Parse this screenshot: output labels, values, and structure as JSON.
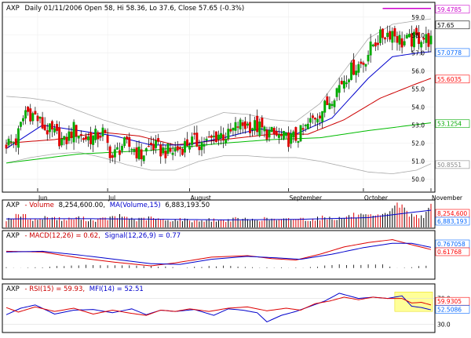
{
  "panels": {
    "price": {
      "symbol": "AXP",
      "info": "Daily 01/11/2006 Open 58, Hi 58.36, Lo 37.6, Close 57.65 (-0.3%)"
    },
    "volume": {
      "symbol": "AXP",
      "info": "- Volume",
      "value": "8,254,600.00,",
      "ma_text": "MA(Volume,15)",
      "ma_value": "6,883,193.50"
    },
    "macd": {
      "symbol": "AXP",
      "info": "- MACD(12,26) = 0.62,",
      "signal_text": "Signal(12,26,9) = 0.77"
    },
    "rsi": {
      "symbol": "AXP",
      "info": "- RSI(15) = 59.93,",
      "mfi_text": "MFI(14) = 52.51"
    }
  },
  "right_labels": {
    "price": [
      {
        "text": "59.4785",
        "color": "#cc00cc"
      },
      {
        "text": "57.65",
        "color": "#000000"
      },
      {
        "text": "57.0778",
        "color": "#0066ff"
      },
      {
        "text": "55.6035",
        "color": "#ff0000"
      },
      {
        "text": "53.1254",
        "color": "#00aa00"
      },
      {
        "text": "50.8551",
        "color": "#888888"
      }
    ],
    "volume": [
      {
        "text": "8,254,600",
        "color": "#ff0000"
      },
      {
        "text": "6,883,193",
        "color": "#0066ff"
      }
    ],
    "macd": [
      {
        "text": "0.767058",
        "color": "#0066ff"
      },
      {
        "text": "0.61768",
        "color": "#ff0000"
      }
    ],
    "rsi": [
      {
        "text": "70.0",
        "color": "#000000"
      },
      {
        "text": "59.9305",
        "color": "#ff0000"
      },
      {
        "text": "52.5086",
        "color": "#0066ff"
      },
      {
        "text": "30.0",
        "color": "#000000"
      }
    ]
  },
  "colors": {
    "up": "#00aa00",
    "down": "#dd0000",
    "ma_fast": "#0000cc",
    "ma_mid": "#cc0000",
    "ma_slow": "#00bb00",
    "bands": "#aaaaaa",
    "resistance": "#cc00cc",
    "highlight": "#ffff99"
  },
  "chart_data": [
    {
      "type": "candlestick",
      "title": "AXP - Daily",
      "ylim": [
        49.5,
        59.6
      ],
      "y_ticks": [
        50.0,
        51.0,
        52.0,
        53.0,
        54.0,
        55.0,
        56.0,
        57.0,
        58.0,
        59.0
      ],
      "y_tick_labels": [
        "50.0",
        "51.0",
        "52.0",
        "53.0",
        "54.0",
        "55.0",
        "56.0",
        "57.0",
        "58.0",
        "59.0"
      ],
      "x_labels": [
        "Jun",
        "Jul",
        "August",
        "September",
        "October",
        "November"
      ],
      "x_label_index": [
        13,
        42,
        76,
        117,
        148,
        176
      ],
      "price_anchors": [
        [
          0,
          52.0
        ],
        [
          4,
          52.1
        ],
        [
          8,
          53.8
        ],
        [
          12,
          53.5
        ],
        [
          16,
          52.8
        ],
        [
          20,
          52.5
        ],
        [
          24,
          52.0
        ],
        [
          28,
          52.8
        ],
        [
          32,
          52.3
        ],
        [
          36,
          52.3
        ],
        [
          40,
          52.6
        ],
        [
          44,
          51.2
        ],
        [
          48,
          51.9
        ],
        [
          52,
          51.8
        ],
        [
          56,
          51.3
        ],
        [
          60,
          51.9
        ],
        [
          64,
          51.6
        ],
        [
          68,
          51.5
        ],
        [
          72,
          51.7
        ],
        [
          76,
          52.1
        ],
        [
          80,
          52.0
        ],
        [
          84,
          52.1
        ],
        [
          88,
          52.5
        ],
        [
          92,
          52.4
        ],
        [
          96,
          53.0
        ],
        [
          100,
          53.0
        ],
        [
          104,
          52.9
        ],
        [
          108,
          52.6
        ],
        [
          112,
          52.4
        ],
        [
          116,
          52.2
        ],
        [
          120,
          52.3
        ],
        [
          124,
          52.8
        ],
        [
          128,
          53.5
        ],
        [
          132,
          54.0
        ],
        [
          136,
          54.8
        ],
        [
          140,
          55.6
        ],
        [
          144,
          56.2
        ],
        [
          148,
          56.5
        ],
        [
          152,
          57.5
        ],
        [
          156,
          58.0
        ],
        [
          160,
          58.2
        ],
        [
          164,
          57.6
        ],
        [
          168,
          57.7
        ],
        [
          172,
          57.9
        ],
        [
          176,
          57.65
        ]
      ],
      "ma_fast_anchors": [
        [
          0,
          51.7
        ],
        [
          15,
          53.0
        ],
        [
          30,
          52.7
        ],
        [
          45,
          52.4
        ],
        [
          60,
          51.9
        ],
        [
          75,
          51.9
        ],
        [
          90,
          52.3
        ],
        [
          105,
          52.8
        ],
        [
          120,
          52.5
        ],
        [
          135,
          53.4
        ],
        [
          150,
          55.6
        ],
        [
          160,
          56.8
        ],
        [
          170,
          57.0
        ],
        [
          176,
          57.08
        ]
      ],
      "ma_mid_anchors": [
        [
          0,
          52.0
        ],
        [
          20,
          52.2
        ],
        [
          40,
          52.6
        ],
        [
          55,
          52.4
        ],
        [
          70,
          51.9
        ],
        [
          90,
          52.2
        ],
        [
          110,
          52.5
        ],
        [
          125,
          52.5
        ],
        [
          140,
          53.3
        ],
        [
          155,
          54.5
        ],
        [
          170,
          55.3
        ],
        [
          176,
          55.6
        ]
      ],
      "ma_slow_anchors": [
        [
          0,
          50.9
        ],
        [
          30,
          51.4
        ],
        [
          60,
          51.6
        ],
        [
          90,
          52.0
        ],
        [
          110,
          52.2
        ],
        [
          130,
          52.3
        ],
        [
          150,
          52.7
        ],
        [
          176,
          53.13
        ]
      ],
      "band_upper_anchors": [
        [
          0,
          54.6
        ],
        [
          10,
          54.5
        ],
        [
          20,
          54.3
        ],
        [
          30,
          53.8
        ],
        [
          40,
          53.3
        ],
        [
          50,
          52.9
        ],
        [
          60,
          52.6
        ],
        [
          70,
          52.7
        ],
        [
          80,
          53.2
        ],
        [
          90,
          53.7
        ],
        [
          100,
          53.6
        ],
        [
          110,
          53.3
        ],
        [
          120,
          53.2
        ],
        [
          130,
          54.2
        ],
        [
          140,
          56.0
        ],
        [
          150,
          57.8
        ],
        [
          160,
          58.6
        ],
        [
          170,
          58.8
        ],
        [
          176,
          58.9
        ]
      ],
      "band_lower_anchors": [
        [
          0,
          50.9
        ],
        [
          10,
          51.2
        ],
        [
          20,
          51.4
        ],
        [
          30,
          51.5
        ],
        [
          40,
          51.2
        ],
        [
          50,
          50.8
        ],
        [
          60,
          50.5
        ],
        [
          70,
          50.5
        ],
        [
          80,
          51.0
        ],
        [
          90,
          51.3
        ],
        [
          100,
          51.3
        ],
        [
          110,
          51.2
        ],
        [
          120,
          51.2
        ],
        [
          130,
          51.0
        ],
        [
          140,
          50.7
        ],
        [
          150,
          50.4
        ],
        [
          160,
          50.3
        ],
        [
          170,
          50.5
        ],
        [
          176,
          50.86
        ]
      ],
      "resistance": [
        [
          156,
          59.48
        ],
        [
          176,
          59.48
        ]
      ]
    },
    {
      "type": "bar",
      "title": "AXP - Volume",
      "ylim": [
        0,
        10000000
      ],
      "volume_anchors": [
        [
          0,
          3.2
        ],
        [
          6,
          5.0
        ],
        [
          12,
          3.0
        ],
        [
          18,
          4.2
        ],
        [
          24,
          3.0
        ],
        [
          30,
          3.8
        ],
        [
          36,
          2.8
        ],
        [
          42,
          3.6
        ],
        [
          48,
          4.5
        ],
        [
          54,
          3.0
        ],
        [
          60,
          3.8
        ],
        [
          66,
          2.8
        ],
        [
          72,
          3.2
        ],
        [
          78,
          2.6
        ],
        [
          84,
          3.0
        ],
        [
          90,
          2.8
        ],
        [
          96,
          3.4
        ],
        [
          102,
          3.0
        ],
        [
          108,
          3.4
        ],
        [
          114,
          2.9
        ],
        [
          120,
          3.6
        ],
        [
          126,
          3.2
        ],
        [
          132,
          4.0
        ],
        [
          138,
          3.6
        ],
        [
          144,
          4.8
        ],
        [
          150,
          4.2
        ],
        [
          156,
          4.4
        ],
        [
          162,
          9.9
        ],
        [
          168,
          4.6
        ],
        [
          174,
          5.0
        ],
        [
          176,
          8.25
        ]
      ],
      "ma_anchors": [
        [
          0,
          3.4
        ],
        [
          30,
          3.5
        ],
        [
          60,
          3.3
        ],
        [
          90,
          3.0
        ],
        [
          120,
          3.2
        ],
        [
          150,
          3.9
        ],
        [
          176,
          6.88
        ]
      ]
    },
    {
      "type": "line",
      "title": "AXP - MACD(12,26)",
      "ylim": [
        -1.2,
        1.6
      ],
      "macd_anchors": [
        [
          0,
          0.5
        ],
        [
          15,
          0.45
        ],
        [
          30,
          0.05
        ],
        [
          45,
          -0.25
        ],
        [
          60,
          -0.5
        ],
        [
          70,
          -0.3
        ],
        [
          85,
          0.1
        ],
        [
          100,
          0.2
        ],
        [
          110,
          0.0
        ],
        [
          120,
          -0.1
        ],
        [
          130,
          0.3
        ],
        [
          140,
          0.8
        ],
        [
          150,
          1.1
        ],
        [
          160,
          1.3
        ],
        [
          168,
          0.95
        ],
        [
          176,
          0.62
        ]
      ],
      "signal_anchors": [
        [
          0,
          0.45
        ],
        [
          15,
          0.5
        ],
        [
          30,
          0.25
        ],
        [
          45,
          -0.05
        ],
        [
          60,
          -0.35
        ],
        [
          72,
          -0.4
        ],
        [
          85,
          -0.05
        ],
        [
          100,
          0.15
        ],
        [
          112,
          0.05
        ],
        [
          122,
          -0.05
        ],
        [
          135,
          0.3
        ],
        [
          148,
          0.75
        ],
        [
          160,
          1.05
        ],
        [
          168,
          1.05
        ],
        [
          176,
          0.77
        ]
      ],
      "hist_anchors": [
        [
          0,
          0.05
        ],
        [
          30,
          -0.2
        ],
        [
          60,
          -0.15
        ],
        [
          75,
          0.05
        ],
        [
          90,
          0.15
        ],
        [
          110,
          -0.05
        ],
        [
          125,
          0.05
        ],
        [
          140,
          0.25
        ],
        [
          155,
          0.25
        ],
        [
          165,
          -0.05
        ],
        [
          176,
          -0.15
        ]
      ]
    },
    {
      "type": "line",
      "title": "AXP - RSI(15) / MFI(14)",
      "ylim": [
        20,
        90
      ],
      "y_ticks": [
        30,
        70
      ],
      "rsi_anchors": [
        [
          0,
          56
        ],
        [
          5,
          49
        ],
        [
          12,
          57
        ],
        [
          20,
          50
        ],
        [
          28,
          55
        ],
        [
          36,
          46
        ],
        [
          44,
          52
        ],
        [
          52,
          47
        ],
        [
          58,
          44
        ],
        [
          64,
          52
        ],
        [
          70,
          50
        ],
        [
          76,
          54
        ],
        [
          84,
          50
        ],
        [
          92,
          55
        ],
        [
          100,
          57
        ],
        [
          108,
          51
        ],
        [
          116,
          55
        ],
        [
          122,
          52
        ],
        [
          128,
          62
        ],
        [
          134,
          66
        ],
        [
          140,
          72
        ],
        [
          146,
          68
        ],
        [
          152,
          72
        ],
        [
          158,
          70
        ],
        [
          164,
          70
        ],
        [
          168,
          63
        ],
        [
          172,
          64
        ],
        [
          176,
          60
        ]
      ],
      "mfi_anchors": [
        [
          0,
          45
        ],
        [
          6,
          55
        ],
        [
          12,
          60
        ],
        [
          20,
          46
        ],
        [
          28,
          52
        ],
        [
          36,
          53
        ],
        [
          44,
          48
        ],
        [
          52,
          54
        ],
        [
          58,
          45
        ],
        [
          64,
          52
        ],
        [
          70,
          50
        ],
        [
          78,
          53
        ],
        [
          86,
          44
        ],
        [
          92,
          54
        ],
        [
          98,
          52
        ],
        [
          104,
          48
        ],
        [
          108,
          34
        ],
        [
          114,
          44
        ],
        [
          120,
          50
        ],
        [
          126,
          58
        ],
        [
          132,
          66
        ],
        [
          138,
          78
        ],
        [
          146,
          70
        ],
        [
          152,
          72
        ],
        [
          158,
          70
        ],
        [
          164,
          74
        ],
        [
          168,
          58
        ],
        [
          172,
          56
        ],
        [
          176,
          52.5
        ]
      ],
      "highlight_index": [
        161,
        176
      ]
    }
  ]
}
